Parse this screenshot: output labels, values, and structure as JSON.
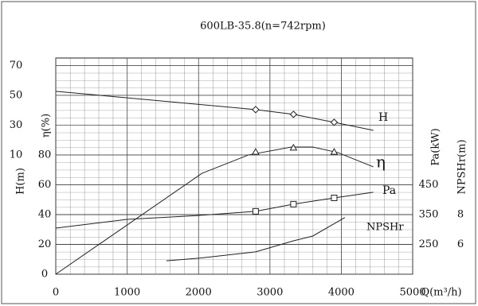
{
  "chart_data": {
    "type": "line",
    "title": "600LB-35.8(n=742rpm)",
    "x_label": "Q(m³/h)",
    "xlim": [
      0,
      5000
    ],
    "xticks": [
      0,
      1000,
      2000,
      3000,
      4000,
      5000
    ],
    "axes": {
      "y": {
        "label": "η(%)",
        "lim": [
          0,
          145
        ],
        "ticks": [
          0,
          20,
          40,
          60,
          80
        ]
      },
      "yH": {
        "label": "H(m)",
        "lim": [
          -70,
          75
        ],
        "ticks": [
          10,
          30,
          50,
          70
        ]
      },
      "y2": {
        "label": "Pa(kW)",
        "lim": [
          150,
          875
        ],
        "ticks": [
          250,
          350,
          450
        ]
      },
      "y3": {
        "label": "NPSHr(m)",
        "lim": [
          4,
          18.5
        ],
        "ticks": [
          6,
          8
        ]
      }
    },
    "grid": true,
    "series": [
      {
        "name": "H",
        "axis": "yH",
        "color": "#222",
        "x": [
          0,
          2800,
          3330,
          3900,
          4450
        ],
        "values": [
          52.7,
          40.4,
          37.2,
          31.9,
          26.5
        ],
        "marker": "diamond",
        "marker_x": [
          2800,
          3330,
          3900
        ],
        "marker_values": [
          40.4,
          37.2,
          31.9
        ]
      },
      {
        "name": "η",
        "axis": "y",
        "color": "#222",
        "x": [
          0,
          2050,
          2700,
          3300,
          3600,
          3950,
          4450
        ],
        "values": [
          0,
          67.7,
          80,
          85.3,
          85.3,
          81.6,
          72
        ],
        "marker": "triangle",
        "marker_x": [
          2800,
          3330,
          3900
        ],
        "marker_values": [
          82,
          84.8,
          82
        ]
      },
      {
        "name": "Pa",
        "axis": "y2",
        "color": "#222",
        "x": [
          0,
          1000,
          2000,
          2800,
          3330,
          3900,
          4450
        ],
        "values": [
          304.7,
          334,
          347,
          361,
          385,
          406,
          425
        ],
        "marker": "square",
        "marker_x": [
          2800,
          3330,
          3900
        ],
        "marker_values": [
          361,
          385,
          406
        ]
      },
      {
        "name": "NPSHr",
        "axis": "y3",
        "color": "#222",
        "x": [
          1550,
          2000,
          2800,
          3330,
          3600,
          4050
        ],
        "values": [
          4.9,
          5.07,
          5.5,
          6.24,
          6.56,
          7.8
        ]
      }
    ]
  }
}
